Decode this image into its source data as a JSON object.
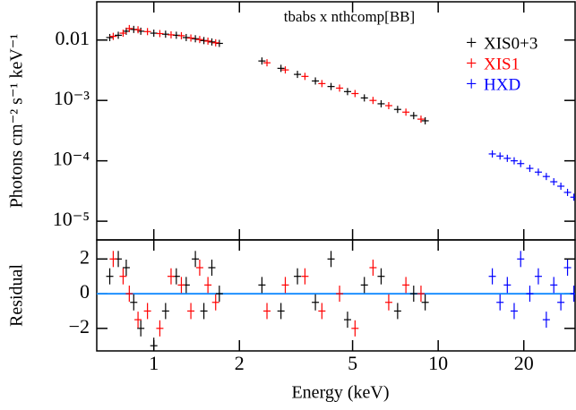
{
  "chart_data": [
    {
      "type": "scatter",
      "annotation": "tbabs x nthcomp[BB]",
      "ylabel": "Photons cm⁻² s⁻¹ keV⁻¹",
      "xlog": true,
      "ylog": true,
      "xlim": [
        0.63,
        30.3
      ],
      "ylim": [
        4.9e-06,
        0.043
      ],
      "xticks": [
        1,
        2,
        5,
        10,
        20
      ],
      "yticks": [
        0.01,
        {
          "value": 0.001,
          "label": "10⁻³"
        },
        {
          "value": 0.0001,
          "label": "10⁻⁴"
        },
        {
          "value": 1e-05,
          "label": "10⁻⁵"
        }
      ],
      "legend": "upper right",
      "series": [
        {
          "name": "XIS0+3",
          "color": "#000000",
          "x": [
            0.7,
            0.75,
            0.8,
            0.85,
            0.9,
            1.0,
            1.1,
            1.2,
            1.3,
            1.4,
            1.5,
            1.6,
            1.7,
            2.4,
            2.8,
            3.2,
            3.7,
            4.2,
            4.8,
            5.5,
            6.3,
            7.2,
            8.2,
            9.0
          ],
          "values": [
            0.011,
            0.012,
            0.014,
            0.015,
            0.014,
            0.013,
            0.0125,
            0.012,
            0.011,
            0.0105,
            0.0098,
            0.0093,
            0.0088,
            0.0045,
            0.0034,
            0.0027,
            0.0021,
            0.0017,
            0.0014,
            0.0011,
            0.00088,
            0.00071,
            0.00056,
            0.00046
          ]
        },
        {
          "name": "XIS1",
          "color": "#ff0000",
          "x": [
            0.72,
            0.78,
            0.82,
            0.88,
            0.95,
            1.05,
            1.15,
            1.25,
            1.35,
            1.45,
            1.55,
            1.65,
            2.5,
            2.9,
            3.4,
            3.9,
            4.5,
            5.1,
            5.9,
            6.7,
            7.7,
            8.7
          ],
          "values": [
            0.0115,
            0.013,
            0.0155,
            0.0148,
            0.0138,
            0.0128,
            0.0122,
            0.0118,
            0.0108,
            0.0102,
            0.0096,
            0.009,
            0.0042,
            0.0032,
            0.0025,
            0.0019,
            0.0016,
            0.0013,
            0.001,
            0.00082,
            0.00064,
            0.00049
          ]
        },
        {
          "name": "HXD",
          "color": "#0000ff",
          "x": [
            15.5,
            16.5,
            17.5,
            18.5,
            19.5,
            21,
            22.5,
            24,
            25.5,
            27,
            28.5,
            30
          ],
          "values": [
            0.00013,
            0.00012,
            0.00011,
            0.0001,
            9e-05,
            7.5e-05,
            6.5e-05,
            5.5e-05,
            4.5e-05,
            3.8e-05,
            3e-05,
            2.5e-05
          ]
        }
      ]
    },
    {
      "type": "scatter",
      "ylabel": "Residual",
      "xlabel": "Energy (keV)",
      "xlog": true,
      "xlim": [
        0.63,
        30.3
      ],
      "ylim": [
        -3.3,
        3.1
      ],
      "xticks": [
        1,
        2,
        5,
        10,
        20
      ],
      "yticks": [
        2,
        0,
        {
          "value": -2,
          "label": "−2"
        }
      ],
      "series": [
        {
          "color": "#000000",
          "x": [
            0.7,
            0.75,
            0.8,
            0.85,
            0.9,
            1.0,
            1.1,
            1.2,
            1.3,
            1.4,
            1.5,
            1.6,
            1.7,
            2.4,
            2.8,
            3.2,
            3.7,
            4.2,
            4.8,
            5.5,
            6.3,
            7.2,
            8.2,
            9.0
          ],
          "values": [
            1,
            2,
            1.5,
            -0.5,
            -2,
            -3,
            -1,
            1,
            0.5,
            2,
            -1,
            1.5,
            0,
            0.5,
            -1,
            1,
            -0.5,
            2,
            -1.5,
            0.5,
            1,
            -1,
            0,
            -0.5
          ]
        },
        {
          "color": "#ff0000",
          "x": [
            0.72,
            0.78,
            0.82,
            0.88,
            0.95,
            1.05,
            1.15,
            1.25,
            1.35,
            1.45,
            1.55,
            1.65,
            2.5,
            2.9,
            3.4,
            3.9,
            4.5,
            5.1,
            5.9,
            6.7,
            7.7,
            8.7
          ],
          "values": [
            2,
            1,
            0,
            -1.5,
            -1,
            -2,
            1,
            0.5,
            -1,
            1.5,
            0.5,
            -0.5,
            -1,
            0.5,
            1,
            -1,
            0,
            -2,
            1.5,
            -0.5,
            0.5,
            0
          ]
        },
        {
          "color": "#0000ff",
          "x": [
            15.5,
            16.5,
            17.5,
            18.5,
            19.5,
            21,
            22.5,
            24,
            25.5,
            27,
            28.5,
            30
          ],
          "values": [
            1,
            -0.5,
            0.5,
            -1,
            2,
            0,
            1,
            -1.5,
            0.5,
            -0.5,
            1.5,
            0
          ]
        }
      ]
    }
  ]
}
